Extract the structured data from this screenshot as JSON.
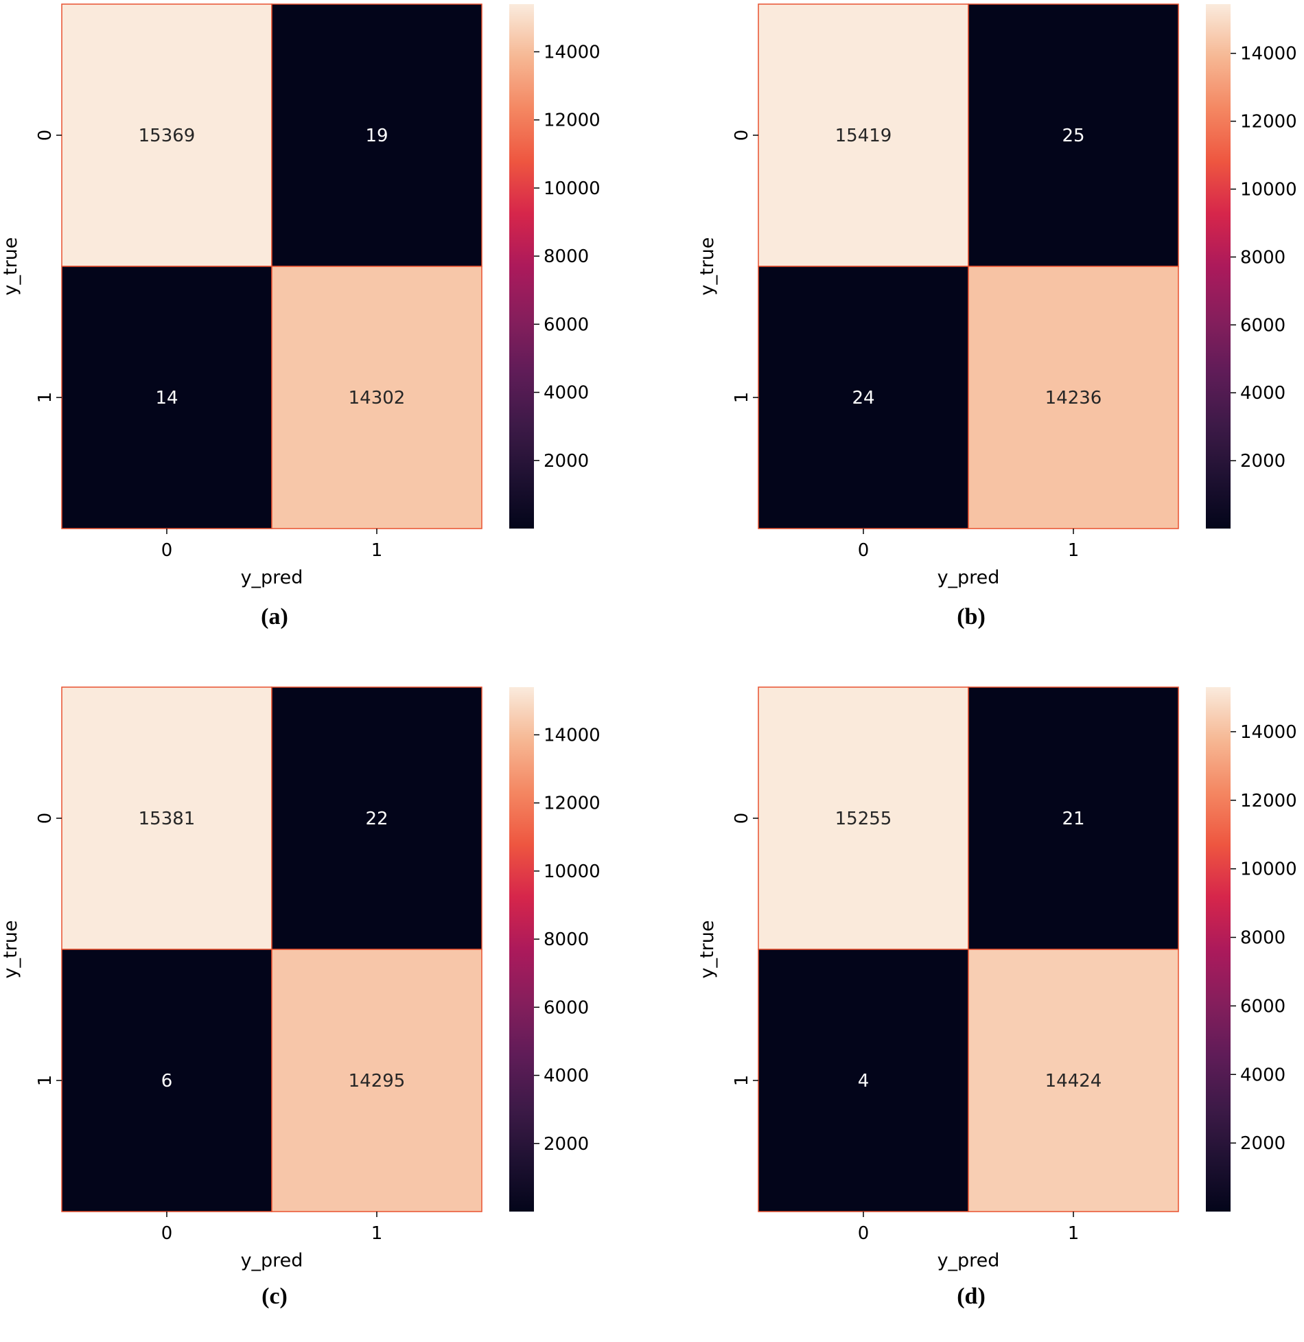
{
  "chart_data": [
    {
      "type": "heatmap",
      "caption": "(a)",
      "xlabel": "y_pred",
      "ylabel": "y_true",
      "x_categories": [
        "0",
        "1"
      ],
      "y_categories": [
        "0",
        "1"
      ],
      "values": [
        [
          15369,
          19
        ],
        [
          14,
          14302
        ]
      ],
      "colorbar": {
        "ticks": [
          "14000",
          "12000",
          "10000",
          "8000",
          "6000",
          "4000",
          "2000"
        ],
        "range": [
          0,
          15400
        ],
        "colormap": "rocket"
      }
    },
    {
      "type": "heatmap",
      "caption": "(b)",
      "xlabel": "y_pred",
      "ylabel": "y_true",
      "x_categories": [
        "0",
        "1"
      ],
      "y_categories": [
        "0",
        "1"
      ],
      "values": [
        [
          15419,
          25
        ],
        [
          24,
          14236
        ]
      ],
      "colorbar": {
        "ticks": [
          "14000",
          "12000",
          "10000",
          "8000",
          "6000",
          "4000",
          "2000"
        ],
        "range": [
          0,
          15450
        ],
        "colormap": "rocket"
      }
    },
    {
      "type": "heatmap",
      "caption": "(c)",
      "xlabel": "y_pred",
      "ylabel": "y_true",
      "x_categories": [
        "0",
        "1"
      ],
      "y_categories": [
        "0",
        "1"
      ],
      "values": [
        [
          15381,
          22
        ],
        [
          6,
          14295
        ]
      ],
      "colorbar": {
        "ticks": [
          "14000",
          "12000",
          "10000",
          "8000",
          "6000",
          "4000",
          "2000"
        ],
        "range": [
          0,
          15400
        ],
        "colormap": "rocket"
      }
    },
    {
      "type": "heatmap",
      "caption": "(d)",
      "xlabel": "y_pred",
      "ylabel": "y_true",
      "x_categories": [
        "0",
        "1"
      ],
      "y_categories": [
        "0",
        "1"
      ],
      "values": [
        [
          15255,
          21
        ],
        [
          4,
          14424
        ]
      ],
      "colorbar": {
        "ticks": [
          "14000",
          "12000",
          "10000",
          "8000",
          "6000",
          "4000",
          "2000"
        ],
        "range": [
          0,
          15300
        ],
        "colormap": "rocket"
      }
    }
  ]
}
